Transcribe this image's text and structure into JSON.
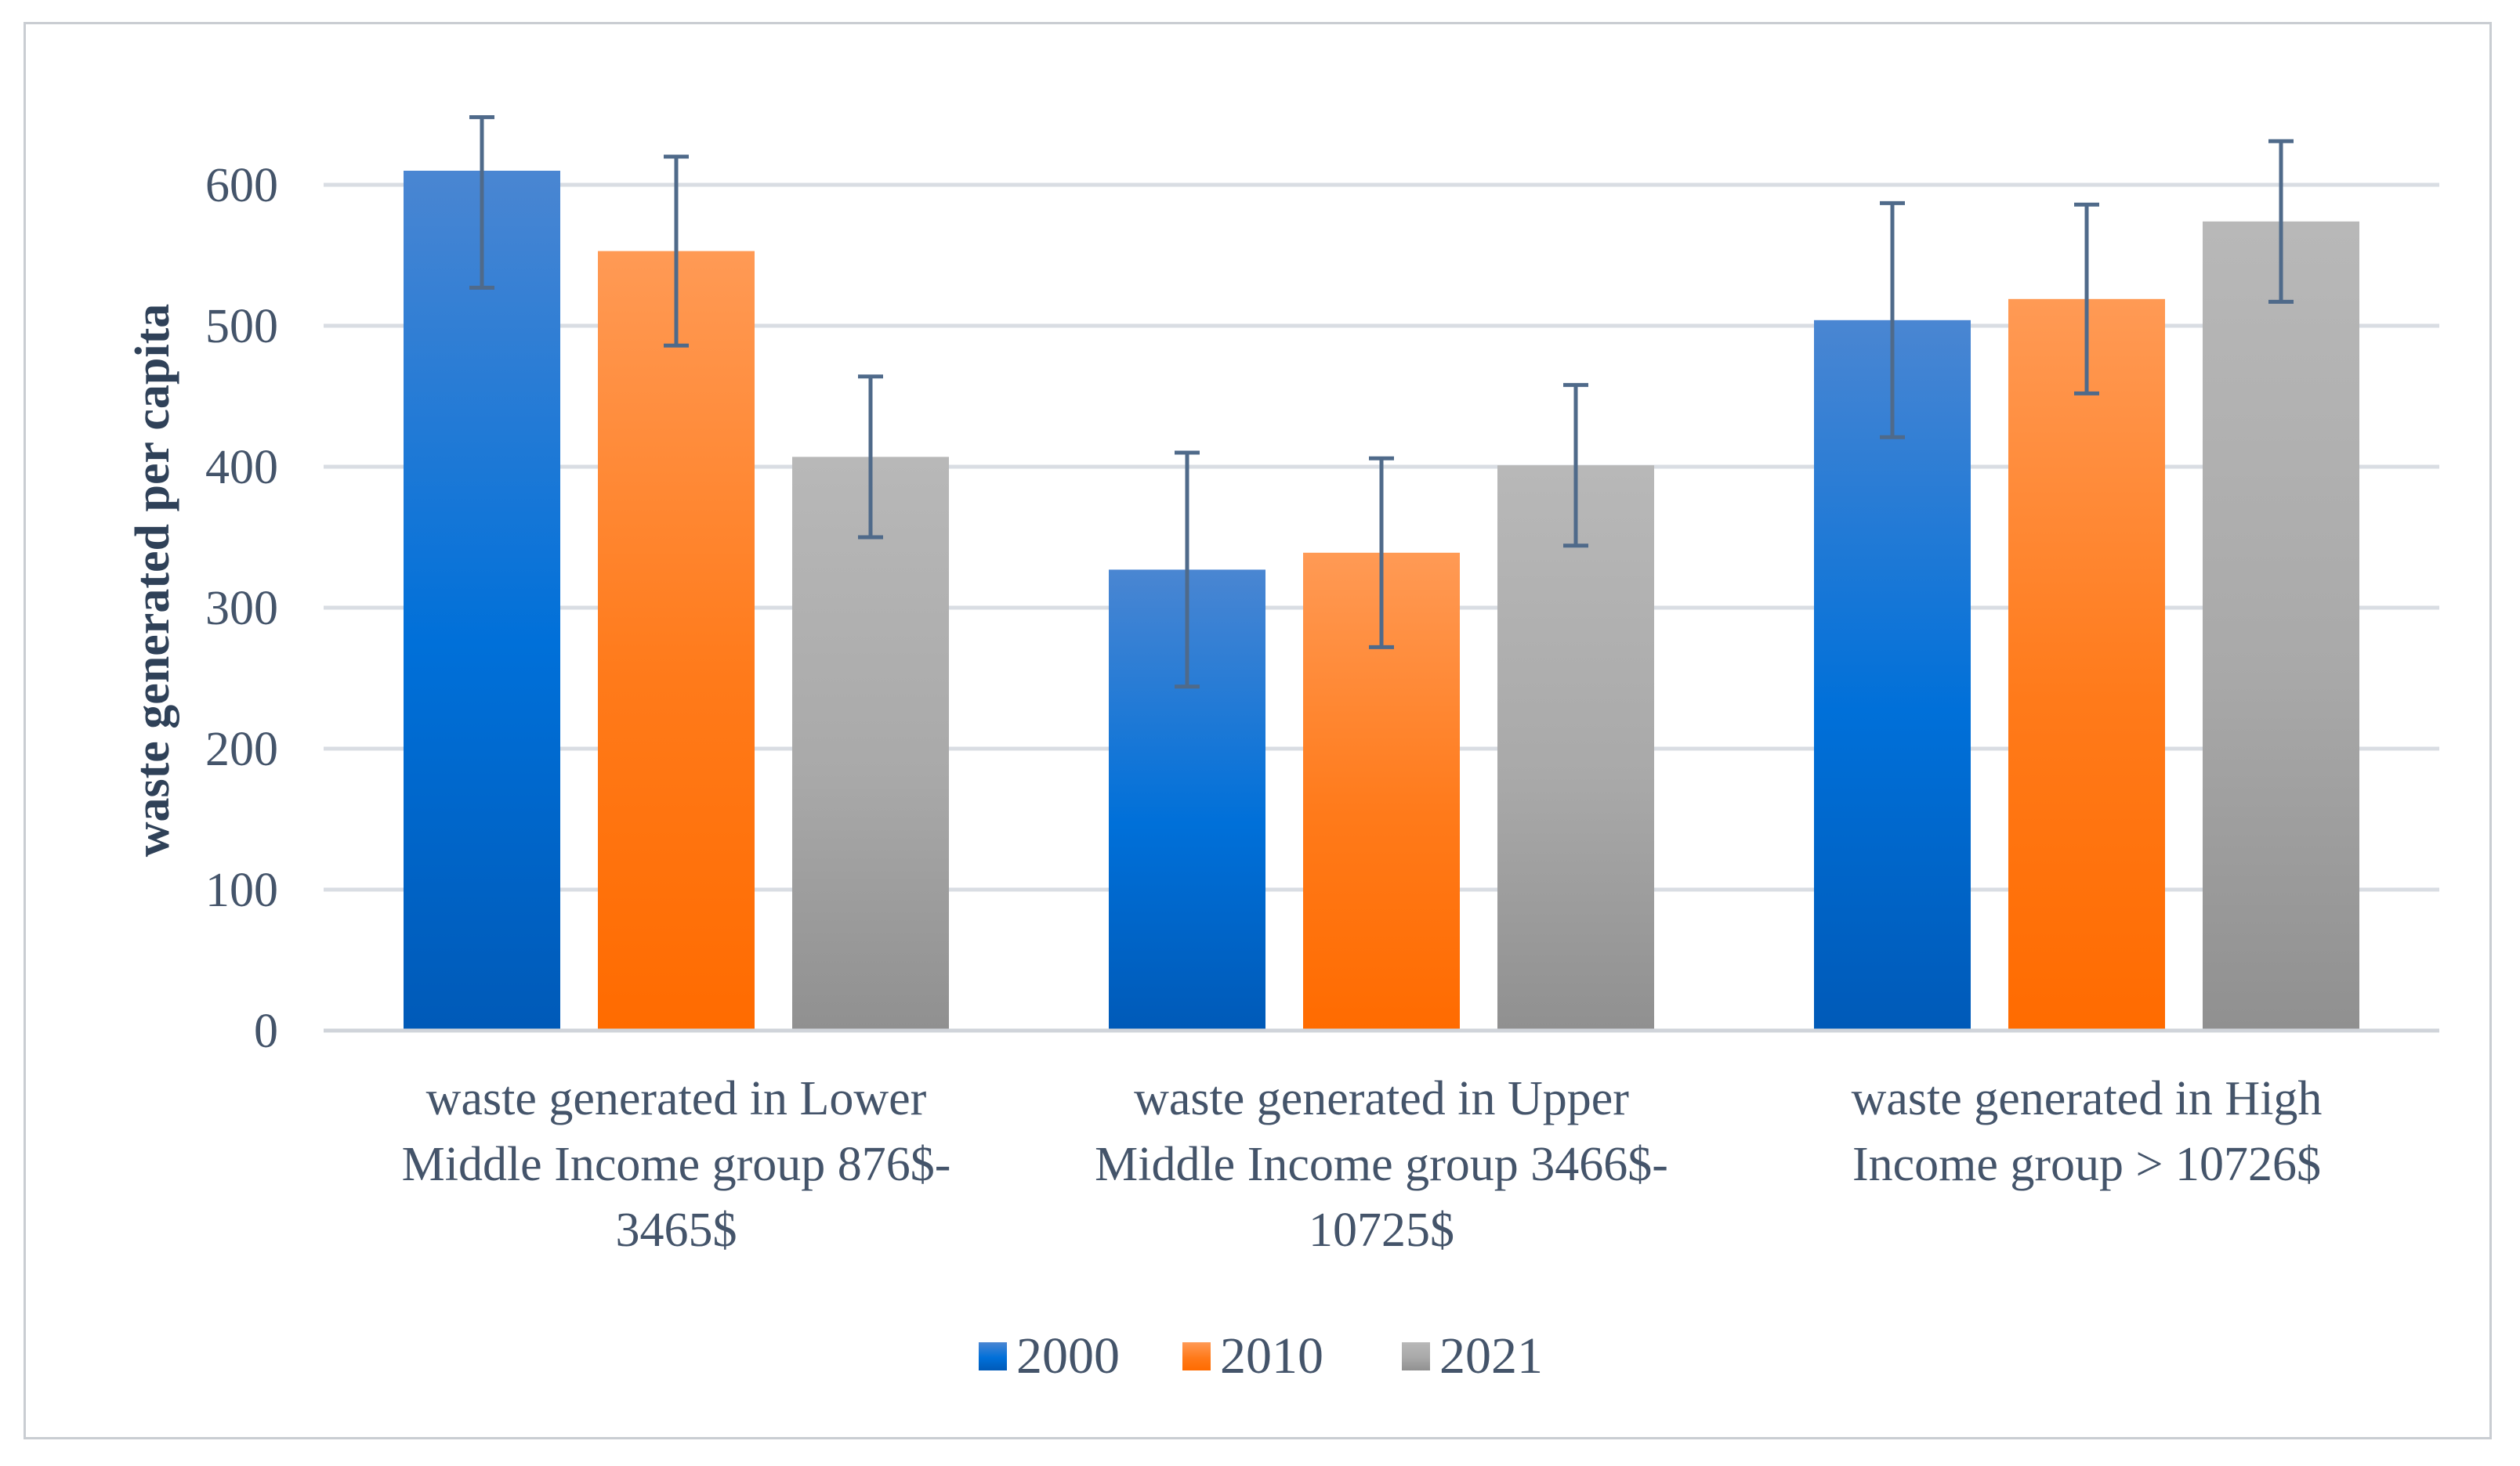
{
  "chart_data": {
    "type": "bar",
    "title": "",
    "xlabel": "",
    "ylabel": "waste generated per capita",
    "ylim": [
      0,
      600
    ],
    "yticks": [
      0,
      100,
      200,
      300,
      400,
      500,
      600
    ],
    "grid": true,
    "legend_position": "bottom",
    "categories": [
      "waste generated in Lower Middle Income group 876$-3465$",
      "waste generated in Upper Middle Income group 3466$-10725$",
      "waste generated in High Income group > 10726$"
    ],
    "category_lines": [
      [
        "waste generated in Lower",
        "Middle Income group 876$-",
        "3465$"
      ],
      [
        "waste generated in Upper",
        "Middle Income group 3466$-",
        "10725$"
      ],
      [
        "waste generated in High",
        "Income group > 10726$"
      ]
    ],
    "series": [
      {
        "name": "2000",
        "values": [
          610,
          327,
          504
        ],
        "error_low": [
          527,
          244,
          421
        ],
        "error_high": [
          648,
          410,
          587
        ],
        "color": "#0a6ed1"
      },
      {
        "name": "2010",
        "values": [
          553,
          339,
          519
        ],
        "error_low": [
          486,
          272,
          452
        ],
        "error_high": [
          620,
          406,
          586
        ],
        "color": "#ff7a1a"
      },
      {
        "name": "2021",
        "values": [
          407,
          401,
          574
        ],
        "error_low": [
          350,
          344,
          517
        ],
        "error_high": [
          464,
          458,
          631
        ],
        "color": "#a6a6a6"
      }
    ],
    "colors": {
      "gridline": "#d9dde3",
      "axis": "#d0d4da",
      "error_bar": "#4f6a8a",
      "text": "#44546a"
    }
  }
}
